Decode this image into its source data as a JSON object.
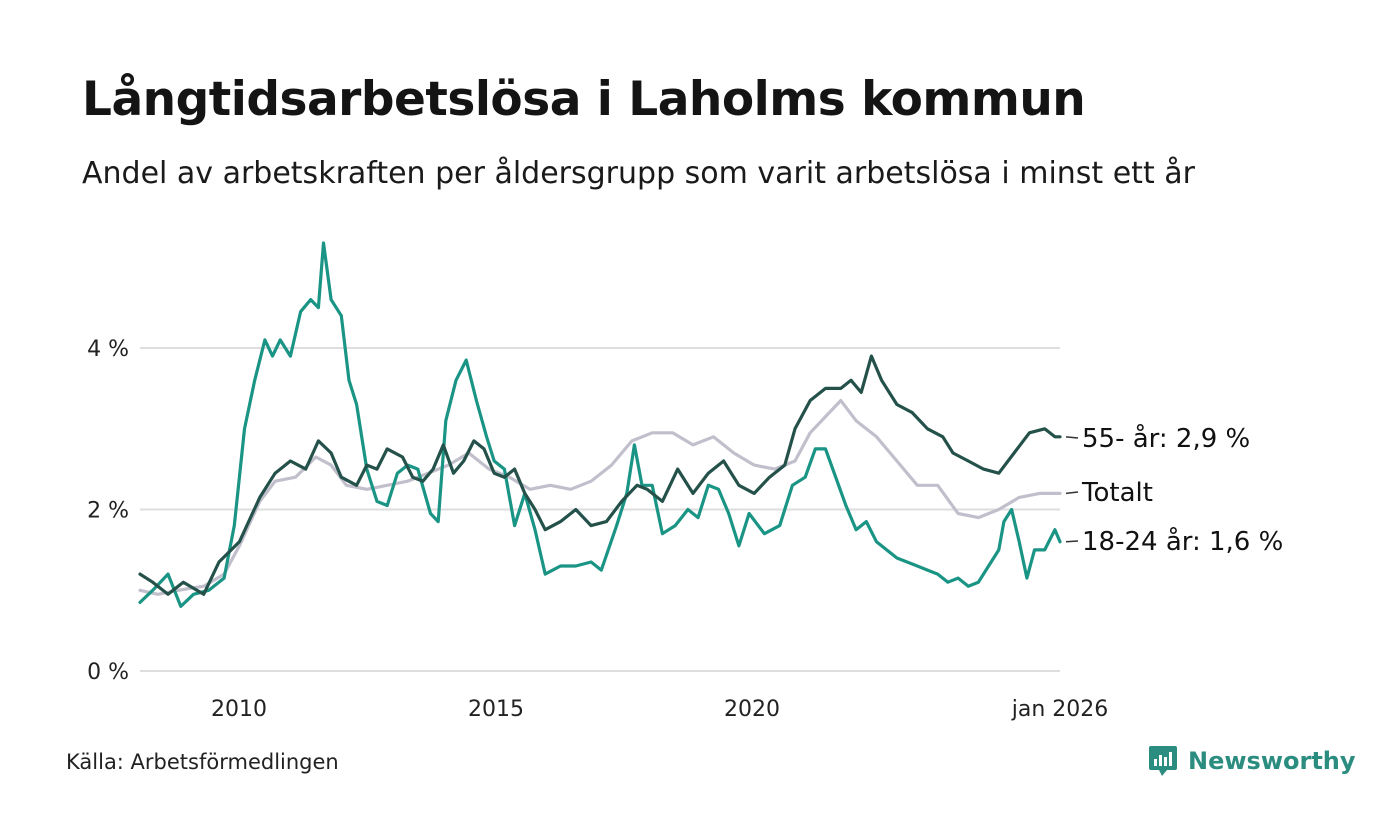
{
  "header": {
    "title": "Långtidsarbetslösa i Laholms kommun",
    "subtitle": "Andel av arbetskraften per åldersgrupp som varit arbetslösa i minst ett år"
  },
  "footer": {
    "source": "Källa: Arbetsförmedlingen",
    "brand": "Newsworthy"
  },
  "colors": {
    "senior": "#24514a",
    "youth": "#1a9484",
    "total": "#c2bfcc",
    "grid": "#dedede",
    "brand": "#2b8c80"
  },
  "chart_data": {
    "type": "line",
    "title": "Långtidsarbetslösa i Laholms kommun",
    "subtitle": "Andel av arbetskraften per åldersgrupp som varit arbetslösa i minst ett år",
    "xlabel": "",
    "ylabel": "",
    "xlim": [
      2008.05,
      2026.1
    ],
    "ylim": [
      0,
      5.4
    ],
    "yticks": [
      0,
      2,
      4
    ],
    "ytick_labels": [
      "0 %",
      "2 %",
      "4 %"
    ],
    "xticks": [
      2010,
      2015,
      2020,
      2026
    ],
    "xtick_labels": [
      "2010",
      "2015",
      "2020",
      "jan 2026"
    ],
    "grid": true,
    "series": [
      {
        "key": "senior",
        "name": "55- år",
        "end_label": "55- år: 2,9 %",
        "color": "#24514a",
        "points": [
          [
            2008.05,
            1.2
          ],
          [
            2008.3,
            1.1
          ],
          [
            2008.6,
            0.95
          ],
          [
            2008.9,
            1.1
          ],
          [
            2009.3,
            0.95
          ],
          [
            2009.6,
            1.35
          ],
          [
            2010.0,
            1.6
          ],
          [
            2010.4,
            2.15
          ],
          [
            2010.7,
            2.45
          ],
          [
            2011.0,
            2.6
          ],
          [
            2011.3,
            2.5
          ],
          [
            2011.55,
            2.85
          ],
          [
            2011.8,
            2.7
          ],
          [
            2012.0,
            2.4
          ],
          [
            2012.3,
            2.3
          ],
          [
            2012.5,
            2.55
          ],
          [
            2012.7,
            2.5
          ],
          [
            2012.9,
            2.75
          ],
          [
            2013.2,
            2.65
          ],
          [
            2013.4,
            2.4
          ],
          [
            2013.6,
            2.35
          ],
          [
            2013.8,
            2.5
          ],
          [
            2014.0,
            2.8
          ],
          [
            2014.2,
            2.45
          ],
          [
            2014.4,
            2.6
          ],
          [
            2014.6,
            2.85
          ],
          [
            2014.8,
            2.75
          ],
          [
            2015.0,
            2.45
          ],
          [
            2015.2,
            2.4
          ],
          [
            2015.4,
            2.5
          ],
          [
            2015.6,
            2.2
          ],
          [
            2015.8,
            2.0
          ],
          [
            2016.0,
            1.75
          ],
          [
            2016.3,
            1.85
          ],
          [
            2016.6,
            2.0
          ],
          [
            2016.9,
            1.8
          ],
          [
            2017.2,
            1.85
          ],
          [
            2017.5,
            2.1
          ],
          [
            2017.8,
            2.3
          ],
          [
            2018.0,
            2.25
          ],
          [
            2018.3,
            2.1
          ],
          [
            2018.6,
            2.5
          ],
          [
            2018.9,
            2.2
          ],
          [
            2019.2,
            2.45
          ],
          [
            2019.5,
            2.6
          ],
          [
            2019.8,
            2.3
          ],
          [
            2020.1,
            2.2
          ],
          [
            2020.4,
            2.4
          ],
          [
            2020.7,
            2.55
          ],
          [
            2020.9,
            3.0
          ],
          [
            2021.2,
            3.35
          ],
          [
            2021.5,
            3.5
          ],
          [
            2021.8,
            3.5
          ],
          [
            2022.0,
            3.6
          ],
          [
            2022.2,
            3.45
          ],
          [
            2022.4,
            3.9
          ],
          [
            2022.6,
            3.6
          ],
          [
            2022.9,
            3.3
          ],
          [
            2023.2,
            3.2
          ],
          [
            2023.5,
            3.0
          ],
          [
            2023.8,
            2.9
          ],
          [
            2024.0,
            2.7
          ],
          [
            2024.3,
            2.6
          ],
          [
            2024.6,
            2.5
          ],
          [
            2024.9,
            2.45
          ],
          [
            2025.2,
            2.7
          ],
          [
            2025.5,
            2.95
          ],
          [
            2025.8,
            3.0
          ],
          [
            2026.0,
            2.9
          ],
          [
            2026.1,
            2.9
          ]
        ]
      },
      {
        "key": "total",
        "name": "Totalt",
        "end_label": "Totalt",
        "color": "#c2bfcc",
        "points": [
          [
            2008.05,
            1.0
          ],
          [
            2008.4,
            0.95
          ],
          [
            2008.8,
            1.0
          ],
          [
            2009.3,
            1.05
          ],
          [
            2009.7,
            1.2
          ],
          [
            2010.0,
            1.55
          ],
          [
            2010.4,
            2.1
          ],
          [
            2010.7,
            2.35
          ],
          [
            2011.1,
            2.4
          ],
          [
            2011.5,
            2.65
          ],
          [
            2011.8,
            2.55
          ],
          [
            2012.1,
            2.3
          ],
          [
            2012.5,
            2.25
          ],
          [
            2012.9,
            2.3
          ],
          [
            2013.3,
            2.35
          ],
          [
            2013.7,
            2.45
          ],
          [
            2014.1,
            2.55
          ],
          [
            2014.5,
            2.7
          ],
          [
            2014.9,
            2.5
          ],
          [
            2015.3,
            2.4
          ],
          [
            2015.7,
            2.25
          ],
          [
            2016.1,
            2.3
          ],
          [
            2016.5,
            2.25
          ],
          [
            2016.9,
            2.35
          ],
          [
            2017.3,
            2.55
          ],
          [
            2017.7,
            2.85
          ],
          [
            2018.1,
            2.95
          ],
          [
            2018.5,
            2.95
          ],
          [
            2018.9,
            2.8
          ],
          [
            2019.3,
            2.9
          ],
          [
            2019.7,
            2.7
          ],
          [
            2020.1,
            2.55
          ],
          [
            2020.5,
            2.5
          ],
          [
            2020.9,
            2.6
          ],
          [
            2021.2,
            2.95
          ],
          [
            2021.5,
            3.15
          ],
          [
            2021.8,
            3.35
          ],
          [
            2022.1,
            3.1
          ],
          [
            2022.5,
            2.9
          ],
          [
            2022.9,
            2.6
          ],
          [
            2023.3,
            2.3
          ],
          [
            2023.7,
            2.3
          ],
          [
            2024.1,
            1.95
          ],
          [
            2024.5,
            1.9
          ],
          [
            2024.9,
            2.0
          ],
          [
            2025.3,
            2.15
          ],
          [
            2025.7,
            2.2
          ],
          [
            2026.1,
            2.2
          ]
        ]
      },
      {
        "key": "youth",
        "name": "18-24 år",
        "end_label": "18-24 år: 1,6 %",
        "color": "#1a9484",
        "points": [
          [
            2008.05,
            0.85
          ],
          [
            2008.3,
            1.0
          ],
          [
            2008.6,
            1.2
          ],
          [
            2008.85,
            0.8
          ],
          [
            2009.1,
            0.95
          ],
          [
            2009.4,
            1.0
          ],
          [
            2009.7,
            1.15
          ],
          [
            2009.9,
            1.8
          ],
          [
            2010.1,
            3.0
          ],
          [
            2010.3,
            3.6
          ],
          [
            2010.5,
            4.1
          ],
          [
            2010.65,
            3.9
          ],
          [
            2010.8,
            4.1
          ],
          [
            2011.0,
            3.9
          ],
          [
            2011.2,
            4.45
          ],
          [
            2011.4,
            4.6
          ],
          [
            2011.55,
            4.5
          ],
          [
            2011.65,
            5.3
          ],
          [
            2011.8,
            4.6
          ],
          [
            2012.0,
            4.4
          ],
          [
            2012.15,
            3.6
          ],
          [
            2012.3,
            3.3
          ],
          [
            2012.5,
            2.5
          ],
          [
            2012.7,
            2.1
          ],
          [
            2012.9,
            2.05
          ],
          [
            2013.1,
            2.45
          ],
          [
            2013.3,
            2.55
          ],
          [
            2013.5,
            2.5
          ],
          [
            2013.75,
            1.95
          ],
          [
            2013.9,
            1.85
          ],
          [
            2014.05,
            3.1
          ],
          [
            2014.25,
            3.6
          ],
          [
            2014.45,
            3.85
          ],
          [
            2014.65,
            3.35
          ],
          [
            2014.85,
            2.9
          ],
          [
            2015.0,
            2.6
          ],
          [
            2015.2,
            2.5
          ],
          [
            2015.4,
            1.8
          ],
          [
            2015.6,
            2.2
          ],
          [
            2015.8,
            1.75
          ],
          [
            2016.0,
            1.2
          ],
          [
            2016.3,
            1.3
          ],
          [
            2016.6,
            1.3
          ],
          [
            2016.9,
            1.35
          ],
          [
            2017.1,
            1.25
          ],
          [
            2017.4,
            1.8
          ],
          [
            2017.6,
            2.2
          ],
          [
            2017.75,
            2.8
          ],
          [
            2017.9,
            2.3
          ],
          [
            2018.1,
            2.3
          ],
          [
            2018.3,
            1.7
          ],
          [
            2018.55,
            1.8
          ],
          [
            2018.8,
            2.0
          ],
          [
            2019.0,
            1.9
          ],
          [
            2019.2,
            2.3
          ],
          [
            2019.4,
            2.25
          ],
          [
            2019.6,
            1.95
          ],
          [
            2019.8,
            1.55
          ],
          [
            2020.0,
            1.95
          ],
          [
            2020.3,
            1.7
          ],
          [
            2020.6,
            1.8
          ],
          [
            2020.85,
            2.3
          ],
          [
            2021.1,
            2.4
          ],
          [
            2021.3,
            2.75
          ],
          [
            2021.5,
            2.75
          ],
          [
            2021.7,
            2.4
          ],
          [
            2021.9,
            2.05
          ],
          [
            2022.1,
            1.75
          ],
          [
            2022.3,
            1.85
          ],
          [
            2022.5,
            1.6
          ],
          [
            2022.7,
            1.5
          ],
          [
            2022.9,
            1.4
          ],
          [
            2023.1,
            1.35
          ],
          [
            2023.3,
            1.3
          ],
          [
            2023.5,
            1.25
          ],
          [
            2023.7,
            1.2
          ],
          [
            2023.9,
            1.1
          ],
          [
            2024.1,
            1.15
          ],
          [
            2024.3,
            1.05
          ],
          [
            2024.5,
            1.1
          ],
          [
            2024.7,
            1.3
          ],
          [
            2024.9,
            1.5
          ],
          [
            2025.0,
            1.85
          ],
          [
            2025.15,
            2.0
          ],
          [
            2025.3,
            1.6
          ],
          [
            2025.45,
            1.15
          ],
          [
            2025.6,
            1.5
          ],
          [
            2025.8,
            1.5
          ],
          [
            2026.0,
            1.75
          ],
          [
            2026.1,
            1.6
          ]
        ]
      }
    ]
  }
}
